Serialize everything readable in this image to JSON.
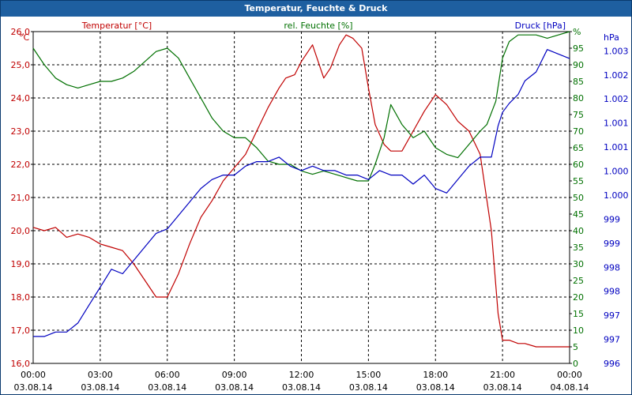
{
  "window": {
    "title": "Temperatur, Feuchte & Druck"
  },
  "chart_data": {
    "type": "line",
    "title": "Temperatur, Feuchte & Druck",
    "colors": {
      "temperature": "#c00000",
      "humidity": "#007000",
      "pressure": "#0000c0",
      "grid": "#000000",
      "titlebar": "#1e5fa0"
    },
    "grid": true,
    "x": {
      "ticks_time": [
        "00:00",
        "03:00",
        "06:00",
        "09:00",
        "12:00",
        "15:00",
        "18:00",
        "21:00",
        "00:00"
      ],
      "ticks_date": [
        "03.08.14",
        "03.08.14",
        "03.08.14",
        "03.08.14",
        "03.08.14",
        "03.08.14",
        "03.08.14",
        "03.08.14",
        "04.08.14"
      ],
      "range_hours": [
        0,
        24
      ]
    },
    "axes": {
      "left": {
        "unit_label": "°C",
        "range": [
          16.0,
          26.0
        ],
        "ticks": [
          "16,0",
          "17,0",
          "18,0",
          "19,0",
          "20,0",
          "21,0",
          "22,0",
          "23,0",
          "24,0",
          "25,0",
          "26,0"
        ]
      },
      "right1": {
        "unit_label": "%",
        "range": [
          0,
          100
        ],
        "ticks": [
          "0",
          "5",
          "10",
          "15",
          "20",
          "25",
          "30",
          "35",
          "40",
          "45",
          "50",
          "55",
          "60",
          "65",
          "70",
          "75",
          "80",
          "85",
          "90",
          "95",
          "%"
        ]
      },
      "right2": {
        "unit_label": "hPa",
        "ticks": [
          "996",
          "997",
          "997",
          "998",
          "998",
          "999",
          "999",
          "1.000",
          "1.000",
          "1.001",
          "1.001",
          "1.002",
          "1.002",
          "1.003"
        ]
      }
    },
    "series": [
      {
        "name": "Temperatur [°C]",
        "key": "temperature",
        "x": [
          0,
          0.5,
          1,
          1.5,
          2,
          2.5,
          3,
          3.5,
          4,
          4.5,
          5,
          5.5,
          6,
          6.5,
          7,
          7.5,
          8,
          8.5,
          9,
          9.5,
          10,
          10.5,
          11,
          11.3,
          11.7,
          12,
          12.5,
          13,
          13.3,
          13.7,
          14,
          14.3,
          14.7,
          15,
          15.3,
          15.7,
          16,
          16.5,
          17,
          17.5,
          18,
          18.5,
          19,
          19.5,
          20,
          20.5,
          20.8,
          21,
          21.3,
          21.7,
          22,
          22.5,
          23,
          23.5,
          24
        ],
        "y": [
          20.1,
          20.0,
          20.1,
          19.8,
          19.9,
          19.8,
          19.6,
          19.5,
          19.4,
          19.0,
          18.5,
          18.0,
          18.0,
          18.7,
          19.6,
          20.4,
          20.9,
          21.5,
          21.9,
          22.3,
          23.0,
          23.7,
          24.3,
          24.6,
          24.7,
          25.1,
          25.6,
          24.6,
          24.9,
          25.6,
          25.9,
          25.8,
          25.5,
          24.3,
          23.2,
          22.6,
          22.4,
          22.4,
          23.0,
          23.6,
          24.1,
          23.8,
          23.3,
          23.0,
          22.3,
          20.0,
          17.5,
          16.7,
          16.7,
          16.6,
          16.6,
          16.5,
          16.5,
          16.5,
          16.5
        ]
      },
      {
        "name": "rel. Feuchte [%]",
        "key": "humidity",
        "x": [
          0,
          0.5,
          1,
          1.5,
          2,
          2.5,
          3,
          3.5,
          4,
          4.5,
          5,
          5.5,
          6,
          6.5,
          7,
          7.5,
          8,
          8.5,
          9,
          9.5,
          10,
          10.5,
          11,
          11.5,
          12,
          12.5,
          13,
          13.5,
          14,
          14.5,
          15,
          15.3,
          15.7,
          16,
          16.5,
          17,
          17.5,
          18,
          18.5,
          19,
          19.5,
          20,
          20.3,
          20.7,
          21,
          21.3,
          21.7,
          22,
          22.5,
          23,
          23.5,
          24
        ],
        "y": [
          95,
          90,
          86,
          84,
          83,
          84,
          85,
          85,
          86,
          88,
          91,
          94,
          95,
          92,
          86,
          80,
          74,
          70,
          68,
          68,
          65,
          61,
          60,
          60,
          58,
          57,
          58,
          57,
          56,
          55,
          55,
          60,
          68,
          78,
          72,
          68,
          70,
          65,
          63,
          62,
          66,
          70,
          72,
          79,
          92,
          97,
          99,
          99,
          99,
          98,
          99,
          100
        ]
      },
      {
        "name": "Druck [hPa]",
        "key": "pressure",
        "y_scale_note": "drawn against Druck axis",
        "x": [
          0,
          0.5,
          1,
          1.5,
          2,
          2.5,
          3,
          3.5,
          4,
          4.5,
          5,
          5.5,
          6,
          6.5,
          7,
          7.5,
          8,
          8.5,
          9,
          9.5,
          10,
          10.5,
          11,
          11.5,
          12,
          12.5,
          13,
          13.5,
          14,
          14.5,
          15,
          15.5,
          16,
          16.5,
          17,
          17.5,
          18,
          18.5,
          19,
          19.5,
          20,
          20.5,
          20.8,
          21,
          21.3,
          21.7,
          22,
          22.5,
          23,
          23.5,
          24
        ],
        "y": [
          996.6,
          996.6,
          996.7,
          996.7,
          996.9,
          997.3,
          997.7,
          998.1,
          998.0,
          998.3,
          998.6,
          998.9,
          999.0,
          999.3,
          999.6,
          999.9,
          1000.1,
          1000.2,
          1000.2,
          1000.4,
          1000.5,
          1000.5,
          1000.6,
          1000.4,
          1000.3,
          1000.4,
          1000.3,
          1000.3,
          1000.2,
          1000.2,
          1000.1,
          1000.3,
          1000.2,
          1000.2,
          1000.0,
          1000.2,
          999.9,
          999.8,
          1000.1,
          1000.4,
          1000.6,
          1000.6,
          1001.3,
          1001.6,
          1001.8,
          1002.0,
          1002.3,
          1002.5,
          1003.0,
          1002.9,
          1002.8
        ]
      }
    ]
  }
}
